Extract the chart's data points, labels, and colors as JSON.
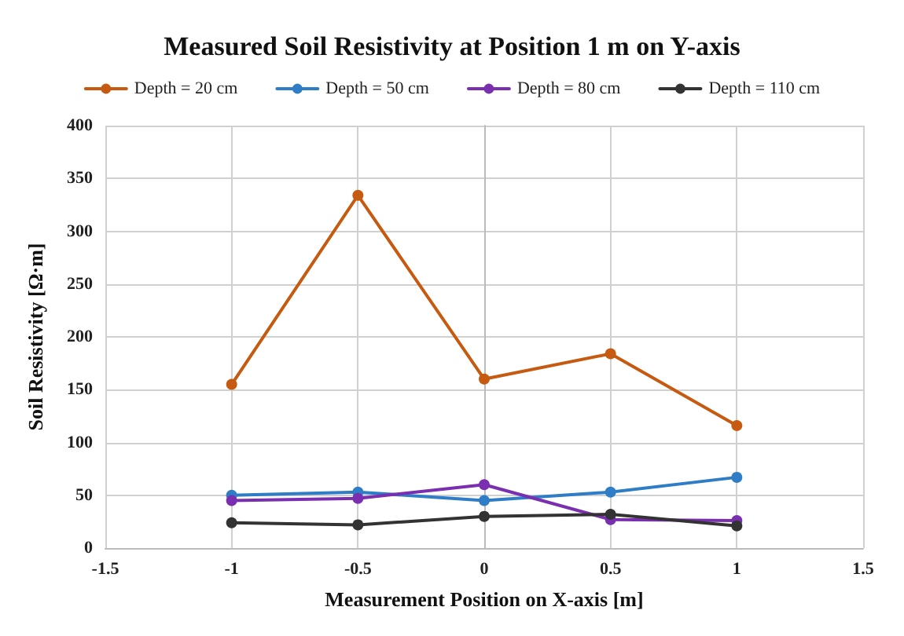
{
  "chart_data": {
    "type": "line",
    "title": "Measured Soil Resistivity at Position 1 m on Y-axis",
    "xlabel": "Measurement Position on X-axis [m]",
    "ylabel": "Soil Resistivity [Ω·m]",
    "x": [
      -1,
      -0.5,
      0,
      0.5,
      1
    ],
    "series": [
      {
        "name": "Depth = 20 cm",
        "color": "#c65a11",
        "values": [
          155,
          334,
          160,
          184,
          116
        ]
      },
      {
        "name": "Depth = 50 cm",
        "color": "#2e7dc6",
        "values": [
          50,
          53,
          45,
          53,
          67
        ]
      },
      {
        "name": "Depth = 80 cm",
        "color": "#7a2fb0",
        "values": [
          45,
          47,
          60,
          27,
          26
        ]
      },
      {
        "name": "Depth = 110 cm",
        "color": "#333333",
        "values": [
          24,
          22,
          30,
          32,
          21
        ]
      }
    ],
    "xlim": [
      -1.5,
      1.5
    ],
    "xticks": [
      -1.5,
      -1,
      -0.5,
      0,
      0.5,
      1,
      1.5
    ],
    "ylim": [
      0,
      400
    ],
    "yticks": [
      0,
      50,
      100,
      150,
      200,
      250,
      300,
      350,
      400
    ],
    "grid": true,
    "legend": "top",
    "marker": "circle",
    "line_style": "solid"
  }
}
